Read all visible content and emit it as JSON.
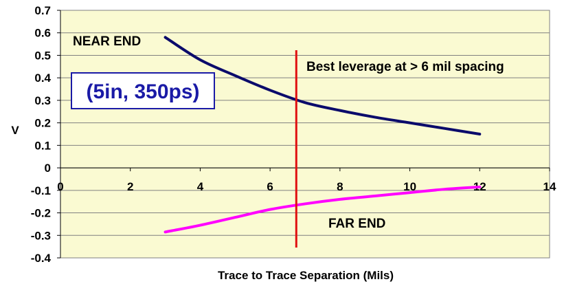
{
  "chart_data": {
    "type": "line",
    "title": "",
    "xlabel": "Trace to Trace Separation (Mils)",
    "ylabel": "V",
    "xlim": [
      0,
      14
    ],
    "ylim": [
      -0.4,
      0.7
    ],
    "x_ticks": [
      0,
      2,
      4,
      6,
      8,
      10,
      12,
      14
    ],
    "y_ticks": [
      -0.4,
      -0.3,
      -0.2,
      -0.1,
      0,
      0.1,
      0.2,
      0.3,
      0.4,
      0.5,
      0.6,
      0.7
    ],
    "grid": "horizontal",
    "plot_background": "#fafad2",
    "series": [
      {
        "name": "NEAR END",
        "color": "#0b0b6b",
        "x": [
          3,
          4,
          5,
          6,
          7,
          8,
          9,
          10,
          11,
          12
        ],
        "y": [
          0.58,
          0.48,
          0.41,
          0.345,
          0.29,
          0.255,
          0.225,
          0.2,
          0.175,
          0.15
        ]
      },
      {
        "name": "FAR END",
        "color": "#ff00ff",
        "x": [
          3,
          4,
          5,
          6,
          7,
          8,
          9,
          10,
          11,
          12
        ],
        "y": [
          -0.285,
          -0.255,
          -0.22,
          -0.185,
          -0.16,
          -0.14,
          -0.125,
          -0.11,
          -0.095,
          -0.085
        ]
      }
    ],
    "marker_line": {
      "x": 6.75,
      "color": "#e01010"
    },
    "annotations": {
      "near_end": "NEAR END",
      "far_end": "FAR END",
      "leverage": "Best leverage at > 6 mil spacing",
      "box": "(5in, 350ps)"
    }
  }
}
